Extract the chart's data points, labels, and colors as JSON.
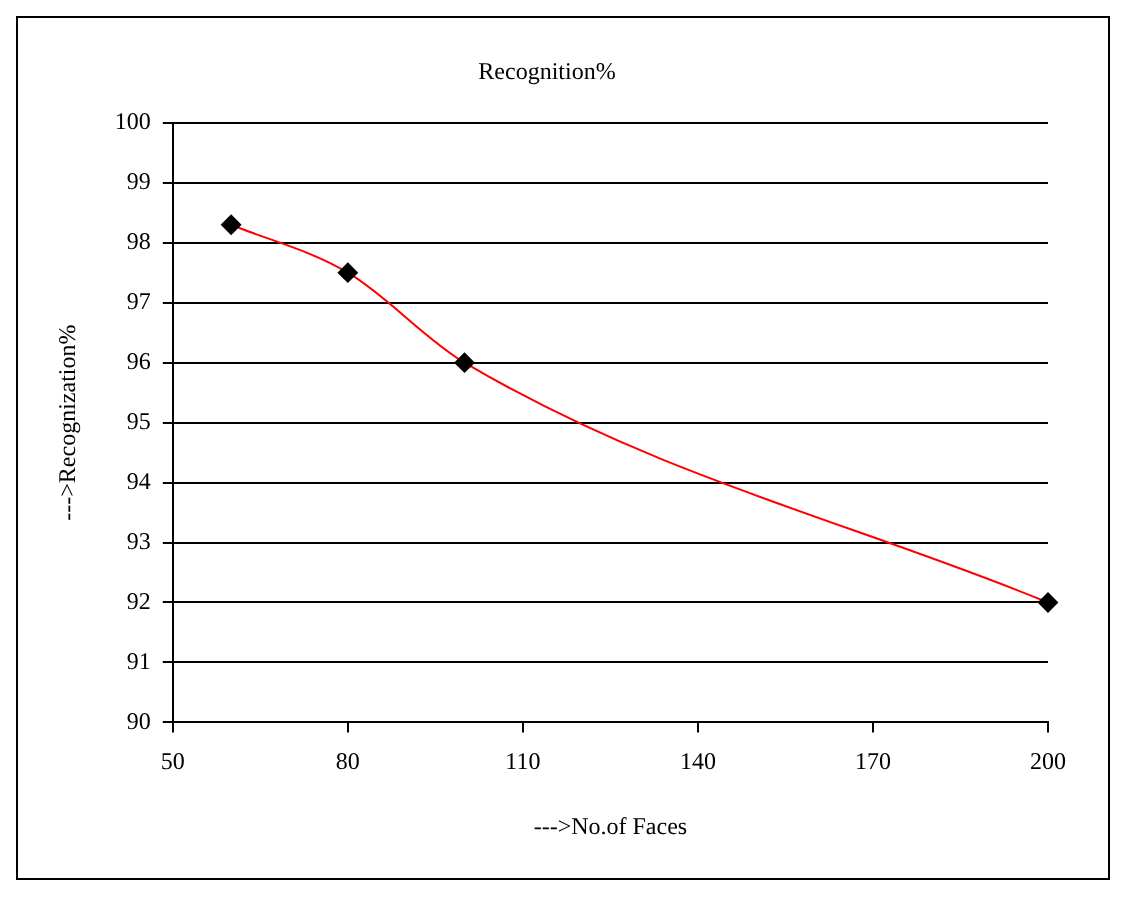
{
  "chart_data": {
    "type": "line",
    "title": "Recognition%",
    "xlabel": "--->No.of Faces",
    "ylabel": "--->Recognization%",
    "x": [
      60,
      80,
      100,
      200
    ],
    "series": [
      {
        "color": "#ff0000",
        "values": [
          98.3,
          97.5,
          96.0,
          92.0
        ]
      }
    ],
    "xlim": [
      50,
      200
    ],
    "xticks": [
      50,
      80,
      110,
      140,
      170,
      200
    ],
    "ylim": [
      90,
      100
    ],
    "yticks": [
      90,
      91,
      92,
      93,
      94,
      95,
      96,
      97,
      98,
      99,
      100
    ],
    "grid": "y",
    "legend": false,
    "marker": "diamond",
    "line_style": "solid"
  }
}
